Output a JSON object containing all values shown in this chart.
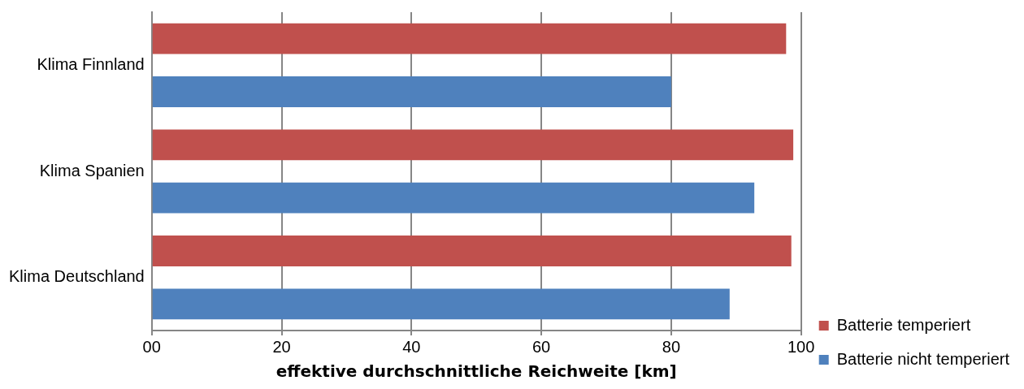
{
  "chart_data": {
    "type": "bar",
    "orientation": "horizontal",
    "xlabel": "effektive durchschnittliche Reichweite [km]",
    "categories": [
      "Klima Finnland",
      "Klima Spanien",
      "Klima Deutschland"
    ],
    "series": [
      {
        "name": "Batterie temperiert",
        "color": "#c0504d",
        "values": [
          97.7,
          98.8,
          98.5
        ]
      },
      {
        "name": "Batterie nicht temperiert",
        "color": "#4f81bd",
        "values": [
          80,
          92.8,
          89.0
        ]
      }
    ],
    "xlim": [
      0,
      100
    ],
    "xticks": [
      {
        "value": 0,
        "label": "00"
      },
      20,
      40,
      60,
      80,
      100
    ],
    "grid": "x",
    "legend": "right"
  }
}
